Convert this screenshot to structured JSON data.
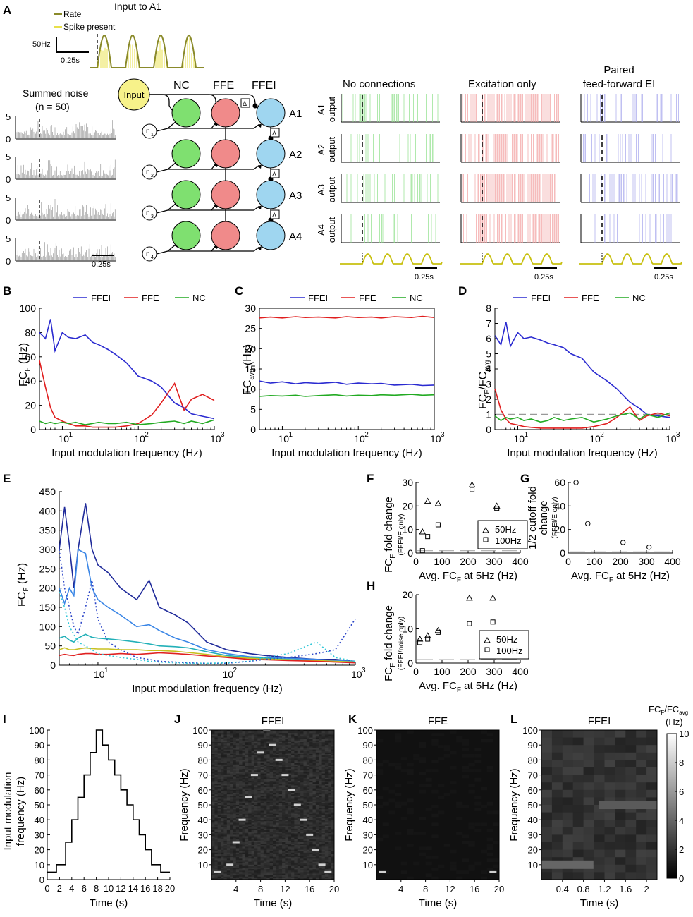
{
  "panels": {
    "A": "A",
    "B": "B",
    "C": "C",
    "D": "D",
    "E": "E",
    "F": "F",
    "G": "G",
    "H": "H",
    "I": "I",
    "J": "J",
    "K": "K",
    "L": "L"
  },
  "colors": {
    "ffei": "#2a2ad0",
    "ffe": "#e01e1e",
    "nc": "#22aa22",
    "nc_node": "#7fe070",
    "ffe_node": "#f08a8a",
    "ffei_node": "#9fd6f0",
    "input_node": "#f7f28a",
    "rate": "#8a8a2a",
    "spike": "#e8e04a"
  },
  "panelA": {
    "input_title": "Input to A1",
    "legend_rate": "Rate",
    "legend_spike": "Spike present",
    "scale_y": "50Hz",
    "scale_x": "0.25s",
    "noise_title_1": "Summed noise",
    "noise_title_2": "(n = 50)",
    "noise_ytick_top": "5",
    "noise_ytick_zero": "0",
    "noise_scale": "0.25s",
    "input_node": "Input",
    "col_nc": "NC",
    "col_ffe": "FFE",
    "col_ffei": "FFEI",
    "nodes": [
      "A1",
      "A2",
      "A3",
      "A4"
    ],
    "noise_nodes": [
      "n",
      "n",
      "n",
      "n"
    ],
    "noise_subs": [
      "1",
      "2",
      "3",
      "4"
    ],
    "delay": "Δ",
    "raster_titles": [
      "No connections",
      "Excitation only",
      "Paired",
      "feed-forward EI"
    ],
    "raster_rows": [
      "A1",
      "A2",
      "A3",
      "A4"
    ],
    "raster_row_suffix": "output",
    "raster_scale": "0.25s"
  },
  "legend": {
    "ffei": "FFEI",
    "ffe": "FFE",
    "nc": "NC"
  },
  "axes": {
    "input_mod_freq": "Input modulation frequency (Hz)",
    "fcf": "FC",
    "fcf_sub": "F",
    "hz": " (Hz)",
    "fcavg_sub": "avg",
    "ratio_slash": "/FC",
    "xtick_10": "10",
    "xtick_1": "1",
    "xtick_2": "2",
    "xtick_3": "3"
  },
  "chart_data": [
    {
      "id": "B",
      "type": "line",
      "xscale": "log",
      "xlim": [
        5,
        1000
      ],
      "ylim": [
        0,
        100
      ],
      "yticks": [
        "0",
        "20",
        "40",
        "60",
        "80",
        "100"
      ],
      "xlabel": "Input modulation frequency (Hz)",
      "ylabel": "FCF (Hz)",
      "x": [
        5,
        6,
        7,
        8,
        10,
        12,
        15,
        20,
        25,
        30,
        40,
        50,
        70,
        100,
        150,
        200,
        300,
        400,
        500,
        700,
        1000
      ],
      "series": [
        {
          "name": "FFEI",
          "values": [
            80,
            75,
            91,
            65,
            80,
            76,
            75,
            78,
            72,
            70,
            66,
            62,
            55,
            44,
            40,
            35,
            22,
            18,
            13,
            11,
            9
          ]
        },
        {
          "name": "FFE",
          "values": [
            57,
            35,
            18,
            10,
            7,
            5,
            3,
            3,
            2,
            2,
            2,
            2,
            3,
            5,
            12,
            22,
            38,
            16,
            25,
            29,
            24
          ]
        },
        {
          "name": "NC",
          "values": [
            7,
            5,
            6,
            5,
            6,
            5,
            6,
            4,
            5,
            6,
            5,
            5,
            6,
            4,
            5,
            6,
            7,
            5,
            7,
            5,
            8
          ]
        }
      ]
    },
    {
      "id": "C",
      "type": "line",
      "xscale": "log",
      "xlim": [
        5,
        1000
      ],
      "ylim": [
        0,
        30
      ],
      "yticks": [
        "0",
        "5",
        "10",
        "15",
        "20",
        "25",
        "30"
      ],
      "xlabel": "Input modulation frequency (Hz)",
      "ylabel": "FCavg (Hz)",
      "x": [
        5,
        7,
        10,
        15,
        20,
        30,
        50,
        70,
        100,
        150,
        200,
        300,
        500,
        700,
        1000
      ],
      "series": [
        {
          "name": "FFEI",
          "values": [
            12,
            11.5,
            11.8,
            11.3,
            11.6,
            11.4,
            11.7,
            11.2,
            11.5,
            11.3,
            11.4,
            11.0,
            11.2,
            10.9,
            11.0
          ]
        },
        {
          "name": "FFE",
          "values": [
            27.6,
            27.8,
            27.6,
            27.9,
            27.7,
            27.8,
            27.6,
            27.9,
            27.7,
            27.8,
            27.6,
            27.9,
            27.7,
            28.0,
            27.7
          ]
        },
        {
          "name": "NC",
          "values": [
            8.2,
            8.4,
            8.3,
            8.5,
            8.2,
            8.4,
            8.6,
            8.3,
            8.5,
            8.4,
            8.6,
            8.5,
            8.7,
            8.5,
            8.6
          ]
        }
      ]
    },
    {
      "id": "D",
      "type": "line",
      "xscale": "log",
      "xlim": [
        5,
        1000
      ],
      "ylim": [
        0,
        8
      ],
      "yticks": [
        "0",
        "1",
        "2",
        "3",
        "4",
        "5",
        "6",
        "7",
        "8"
      ],
      "xlabel": "Input modulation frequency (Hz)",
      "ylabel": "FCF/FCavg",
      "x": [
        5,
        6,
        7,
        8,
        10,
        12,
        15,
        20,
        25,
        30,
        40,
        50,
        70,
        100,
        150,
        200,
        300,
        400,
        500,
        700,
        1000
      ],
      "series": [
        {
          "name": "FFEI",
          "values": [
            6.2,
            5.6,
            7.1,
            5.5,
            6.4,
            6.0,
            6.1,
            5.9,
            5.7,
            5.6,
            5.4,
            5.0,
            4.7,
            3.8,
            3.2,
            2.7,
            1.8,
            1.4,
            1.0,
            0.9,
            0.8
          ]
        },
        {
          "name": "FFE",
          "values": [
            2.7,
            1.3,
            0.7,
            0.4,
            0.3,
            0.2,
            0.15,
            0.1,
            0.1,
            0.1,
            0.1,
            0.1,
            0.1,
            0.2,
            0.4,
            0.8,
            1.5,
            0.6,
            0.9,
            1.1,
            0.9
          ]
        },
        {
          "name": "NC",
          "values": [
            0.9,
            0.6,
            0.8,
            0.7,
            0.8,
            0.6,
            0.7,
            0.5,
            0.6,
            0.8,
            0.6,
            0.7,
            0.8,
            0.5,
            0.7,
            0.9,
            1.1,
            0.7,
            1.0,
            0.8,
            1.1
          ]
        }
      ]
    },
    {
      "id": "E",
      "type": "line",
      "xscale": "log",
      "xlim": [
        5,
        1000
      ],
      "ylim": [
        0,
        450
      ],
      "yticks": [
        "0",
        "50",
        "100",
        "150",
        "200",
        "250",
        "300",
        "350",
        "400",
        "450"
      ],
      "xlabel": "Input modulation frequency (Hz)",
      "ylabel": "FCF (Hz)",
      "x": [
        5,
        5.5,
        6,
        6.5,
        7,
        8,
        9,
        10,
        12,
        15,
        20,
        25,
        30,
        40,
        50,
        70,
        100,
        150,
        200,
        300,
        500,
        700,
        1000
      ],
      "series": [
        {
          "name": "FFEI dark",
          "values": [
            300,
            410,
            310,
            200,
            300,
            420,
            300,
            260,
            240,
            200,
            170,
            220,
            150,
            130,
            110,
            60,
            40,
            30,
            25,
            20,
            15,
            15,
            10
          ]
        },
        {
          "name": "FFEI light",
          "values": [
            200,
            160,
            200,
            180,
            300,
            290,
            200,
            170,
            150,
            130,
            100,
            105,
            90,
            70,
            60,
            40,
            30,
            22,
            20,
            18,
            15,
            12,
            10
          ]
        },
        {
          "name": "FFEI cyan",
          "values": [
            70,
            75,
            65,
            60,
            70,
            80,
            72,
            70,
            68,
            65,
            60,
            55,
            50,
            48,
            45,
            35,
            25,
            20,
            18,
            15,
            12,
            10,
            8
          ]
        },
        {
          "name": "olive",
          "values": [
            40,
            45,
            40,
            40,
            42,
            45,
            43,
            42,
            42,
            40,
            40,
            38,
            38,
            36,
            33,
            28,
            22,
            18,
            16,
            14,
            12,
            10,
            8
          ]
        },
        {
          "name": "FFE red",
          "values": [
            25,
            28,
            26,
            25,
            28,
            30,
            30,
            28,
            28,
            30,
            28,
            30,
            32,
            30,
            28,
            24,
            20,
            15,
            14,
            12,
            10,
            8,
            6
          ]
        },
        {
          "name": "FFE dotted blue",
          "values": [
            300,
            200,
            150,
            100,
            80,
            150,
            220,
            120,
            60,
            40,
            20,
            15,
            10,
            8,
            6,
            5,
            5,
            10,
            15,
            20,
            30,
            40,
            120
          ]
        },
        {
          "name": "FFE dotted cyan",
          "values": [
            190,
            150,
            100,
            80,
            60,
            50,
            40,
            30,
            25,
            20,
            15,
            10,
            8,
            6,
            5,
            5,
            6,
            10,
            20,
            30,
            60,
            20,
            10
          ]
        }
      ]
    },
    {
      "id": "F",
      "type": "scatter",
      "xlim": [
        0,
        400
      ],
      "ylim": [
        0,
        30
      ],
      "xticks": [
        "0",
        "100",
        "200",
        "300",
        "400"
      ],
      "yticks": [
        "0",
        "10",
        "20",
        "30"
      ],
      "xlabel": "Avg. FCF at 5Hz (Hz)",
      "ylabel": "FCF fold change (FFEI/E only)",
      "series": [
        {
          "name": "50Hz",
          "marker": "triangle",
          "points": [
            [
              25,
              9
            ],
            [
              45,
              22
            ],
            [
              85,
              21
            ],
            [
              215,
              29
            ],
            [
              310,
              20
            ]
          ]
        },
        {
          "name": "100Hz",
          "marker": "square",
          "points": [
            [
              25,
              1
            ],
            [
              45,
              7
            ],
            [
              85,
              12
            ],
            [
              215,
              27
            ],
            [
              310,
              19
            ]
          ]
        }
      ]
    },
    {
      "id": "G",
      "type": "scatter",
      "xlim": [
        0,
        400
      ],
      "ylim": [
        0,
        60
      ],
      "xticks": [
        "0",
        "100",
        "200",
        "300",
        "400"
      ],
      "yticks": [
        "0",
        "20",
        "40",
        "60"
      ],
      "xlabel": "Avg. FCF at 5Hz (Hz)",
      "ylabel": "1/2 cutoff fold change (FFEI/E only)",
      "series": [
        {
          "name": "cutoff",
          "marker": "circle",
          "points": [
            [
              30,
              60
            ],
            [
              75,
              25
            ],
            [
              210,
              9
            ],
            [
              310,
              5
            ]
          ]
        }
      ]
    },
    {
      "id": "H",
      "type": "scatter",
      "xlim": [
        0,
        400
      ],
      "ylim": [
        0,
        20
      ],
      "xticks": [
        "0",
        "100",
        "200",
        "300",
        "400"
      ],
      "yticks": [
        "0",
        "10",
        "20"
      ],
      "xlabel": "Avg. FCF at 5Hz (Hz)",
      "ylabel": "FCF fold change (FFEI/noise only)",
      "series": [
        {
          "name": "50Hz",
          "marker": "triangle",
          "points": [
            [
              15,
              7
            ],
            [
              45,
              8
            ],
            [
              85,
              9.5
            ],
            [
              205,
              19
            ],
            [
              295,
              19
            ]
          ]
        },
        {
          "name": "100Hz",
          "marker": "square",
          "points": [
            [
              15,
              6
            ],
            [
              45,
              7
            ],
            [
              85,
              9
            ],
            [
              205,
              11.5
            ],
            [
              295,
              12
            ]
          ]
        }
      ]
    },
    {
      "id": "I",
      "type": "line",
      "xlim": [
        0,
        20
      ],
      "ylim": [
        0,
        100
      ],
      "xticks": [
        "0",
        "2",
        "4",
        "6",
        "8",
        "10",
        "12",
        "14",
        "16",
        "18",
        "20"
      ],
      "yticks": [
        "0",
        "10",
        "20",
        "30",
        "40",
        "50",
        "60",
        "70",
        "80",
        "90",
        "100"
      ],
      "xlabel": "Time (s)",
      "ylabel": "Input modulation frequency (Hz)",
      "x": [
        0,
        1.5,
        1.5,
        3,
        3,
        4,
        4,
        5,
        5,
        6,
        6,
        7,
        7,
        8,
        8,
        9,
        9,
        10,
        10,
        11,
        11,
        12,
        12,
        13,
        13,
        14,
        14,
        15,
        15,
        16,
        16,
        17,
        17,
        18.5,
        18.5,
        20
      ],
      "values": [
        5,
        5,
        10,
        10,
        25,
        25,
        40,
        40,
        55,
        55,
        70,
        70,
        85,
        85,
        100,
        100,
        90,
        90,
        80,
        80,
        70,
        70,
        60,
        60,
        50,
        50,
        40,
        40,
        30,
        30,
        20,
        20,
        10,
        10,
        5,
        5
      ]
    },
    {
      "id": "J",
      "type": "heatmap",
      "title": "FFEI",
      "xlim": [
        0,
        20
      ],
      "ylim": [
        0,
        100
      ],
      "xticks": [
        "4",
        "8",
        "12",
        "16",
        "20"
      ],
      "yticks": [
        "10",
        "20",
        "30",
        "40",
        "50",
        "60",
        "70",
        "80",
        "90",
        "100"
      ],
      "xlabel": "Time (s)",
      "ylabel": "Frequency (Hz)",
      "peaks": [
        [
          1,
          5
        ],
        [
          3,
          10
        ],
        [
          4,
          25
        ],
        [
          5,
          40
        ],
        [
          6,
          55
        ],
        [
          7,
          70
        ],
        [
          8,
          85
        ],
        [
          9,
          100
        ],
        [
          10,
          90
        ],
        [
          11,
          80
        ],
        [
          12,
          70
        ],
        [
          13,
          60
        ],
        [
          14,
          50
        ],
        [
          15,
          40
        ],
        [
          16,
          30
        ],
        [
          17,
          20
        ],
        [
          18,
          10
        ],
        [
          19,
          5
        ]
      ]
    },
    {
      "id": "K",
      "type": "heatmap",
      "title": "FFE",
      "xlim": [
        0,
        20
      ],
      "ylim": [
        0,
        100
      ],
      "xticks": [
        "4",
        "8",
        "12",
        "16",
        "20"
      ],
      "yticks": [
        "10",
        "20",
        "30",
        "40",
        "50",
        "60",
        "70",
        "80",
        "90",
        "100"
      ],
      "xlabel": "Time (s)",
      "ylabel": "Frequency (Hz)",
      "peaks": [
        [
          1,
          5
        ],
        [
          19,
          5
        ]
      ]
    },
    {
      "id": "L",
      "type": "heatmap",
      "title": "FFEI",
      "xlim": [
        0,
        2.2
      ],
      "ylim": [
        0,
        100
      ],
      "xticks": [
        "0.4",
        "0.8",
        "1.2",
        "1.6",
        "2"
      ],
      "yticks": [
        "10",
        "20",
        "30",
        "40",
        "50",
        "60",
        "70",
        "80",
        "90",
        "100"
      ],
      "xlabel": "Time (s)",
      "ylabel": "Frequency (Hz)",
      "colorbar": {
        "label": "FCF/FCavg (Hz)",
        "ticks": [
          "0",
          "2",
          "4",
          "6",
          "8",
          "10"
        ],
        "range": [
          0,
          10
        ]
      }
    }
  ],
  "fgh": {
    "f_ylabel": "FC",
    "f_ylabel_sub": "F",
    "f_ylabel_rest": " fold change",
    "f_ylabel_small": "(FFEI/E only)",
    "g_ylabel": "1/2 cutoff fold",
    "g_ylabel2": "change",
    "g_ylabel_small": "(FFEI/E only)",
    "h_ylabel_small": "(FFEI/noise only)",
    "xlabel_pre": "Avg. FC",
    "xlabel_sub": "F",
    "xlabel_post": " at 5Hz (Hz)",
    "leg_50": "50Hz",
    "leg_100": "100Hz"
  },
  "ijkl": {
    "i_ylabel_1": "Input modulation",
    "i_ylabel_2": "frequency (Hz)",
    "time": "Time (s)",
    "freq": "Frequency (Hz)",
    "j_title": "FFEI",
    "k_title": "FFE",
    "l_title": "FFEI",
    "cb_title_pre": "FC",
    "cb_title_sub1": "F",
    "cb_title_mid": "/FC",
    "cb_title_sub2": "avg",
    "cb_title_unit": "(Hz)"
  }
}
